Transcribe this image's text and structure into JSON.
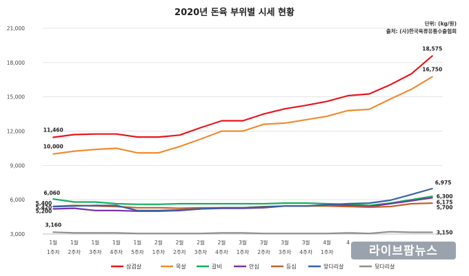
{
  "chart_data": {
    "type": "line",
    "title": "2020년 돈육 부위별 시세 현황",
    "unit_note": "단위: (kg/원)",
    "source_note": "출처: (사)한국육류유통수출협회",
    "ylim": [
      3000,
      21000
    ],
    "yticks": [
      "3,000",
      "6,000",
      "9,000",
      "12,000",
      "15,000",
      "18,000",
      "21,000"
    ],
    "ytick_values": [
      3000,
      6000,
      9000,
      12000,
      15000,
      18000,
      21000
    ],
    "categories": [
      [
        "1월",
        "1주차"
      ],
      [
        "1월",
        "2주차"
      ],
      [
        "1월",
        "3주차"
      ],
      [
        "1월",
        "4주차"
      ],
      [
        "1월",
        "5주차"
      ],
      [
        "2월",
        "1주차"
      ],
      [
        "2월",
        "2주차"
      ],
      [
        "2월",
        "3주차"
      ],
      [
        "2월",
        "4주차"
      ],
      [
        "3월",
        "1주차"
      ],
      [
        "3월",
        "2주차"
      ],
      [
        "3월",
        "3주차"
      ],
      [
        "3월",
        "4주차"
      ],
      [
        "4월",
        "1주차"
      ],
      [
        "4",
        ""
      ],
      [
        "",
        ""
      ],
      [
        "",
        ""
      ],
      [
        "",
        ""
      ],
      [
        "",
        ""
      ]
    ],
    "series": [
      {
        "name": "삼겹살",
        "color": "#e8141c",
        "values": [
          11460,
          11700,
          11750,
          11750,
          11480,
          11480,
          11650,
          12300,
          12900,
          12900,
          13500,
          13950,
          14250,
          14600,
          15100,
          15250,
          16050,
          17000,
          18575
        ],
        "labels": [
          {
            "index": 0,
            "text": "11,460",
            "pos": "above"
          },
          {
            "index": 18,
            "text": "18,575",
            "pos": "above"
          }
        ]
      },
      {
        "name": "목살",
        "color": "#f28a2e",
        "values": [
          10000,
          10250,
          10400,
          10500,
          10100,
          10100,
          10650,
          11300,
          12000,
          12000,
          12600,
          12700,
          13000,
          13300,
          13800,
          13900,
          14800,
          15650,
          16750
        ],
        "labels": [
          {
            "index": 0,
            "text": "10,000",
            "pos": "above"
          },
          {
            "index": 18,
            "text": "16,750",
            "pos": "above"
          }
        ]
      },
      {
        "name": "갈비",
        "color": "#12b05a",
        "values": [
          6060,
          5800,
          5800,
          5650,
          5600,
          5600,
          5650,
          5650,
          5650,
          5650,
          5650,
          5700,
          5700,
          5650,
          5600,
          5500,
          5700,
          6000,
          6300
        ],
        "labels": [
          {
            "index": 0,
            "text": "6,060",
            "pos": "above-left"
          },
          {
            "index": 18,
            "text": "6,300",
            "pos": "right"
          }
        ]
      },
      {
        "name": "안심",
        "color": "#7434a8",
        "values": [
          5200,
          5250,
          5050,
          5050,
          5000,
          5000,
          5050,
          5200,
          5250,
          5250,
          5300,
          5450,
          5450,
          5500,
          5500,
          5400,
          5650,
          5900,
          6175
        ],
        "labels": [
          {
            "index": 0,
            "text": "5,200",
            "pos": "left-low"
          },
          {
            "index": 18,
            "text": "6,175",
            "pos": "right-low"
          }
        ]
      },
      {
        "name": "등심",
        "color": "#c0622a",
        "values": [
          5420,
          5500,
          5450,
          5400,
          5300,
          5300,
          5250,
          5300,
          5300,
          5300,
          5400,
          5450,
          5450,
          5450,
          5400,
          5350,
          5400,
          5650,
          5700
        ],
        "labels": [
          {
            "index": 0,
            "text": "5,420",
            "pos": "left"
          },
          {
            "index": 18,
            "text": "5,700",
            "pos": "right-low"
          }
        ]
      },
      {
        "name": "앞다리살",
        "color": "#3a5fa8",
        "values": [
          5400,
          5450,
          5500,
          5500,
          5050,
          5050,
          5100,
          5200,
          5300,
          5300,
          5350,
          5450,
          5450,
          5550,
          5650,
          5700,
          5950,
          6450,
          6975
        ],
        "labels": [
          {
            "index": 0,
            "text": "5,400",
            "pos": "left-mid"
          },
          {
            "index": 18,
            "text": "6,975",
            "pos": "above-right"
          }
        ]
      },
      {
        "name": "뒷다리살",
        "color": "#8f8f8f",
        "values": [
          3160,
          3100,
          3100,
          3100,
          3050,
          3050,
          3050,
          3050,
          3100,
          3100,
          3050,
          3050,
          3050,
          3050,
          3100,
          3050,
          3200,
          3150,
          3150
        ],
        "labels": [
          {
            "index": 0,
            "text": "3,160",
            "pos": "above"
          },
          {
            "index": 18,
            "text": "3,150",
            "pos": "right"
          }
        ]
      }
    ],
    "grid": true,
    "legend": "bottom-center"
  },
  "watermark": {
    "text": "라이브팜뉴스",
    "color": "#9aa3ad"
  }
}
